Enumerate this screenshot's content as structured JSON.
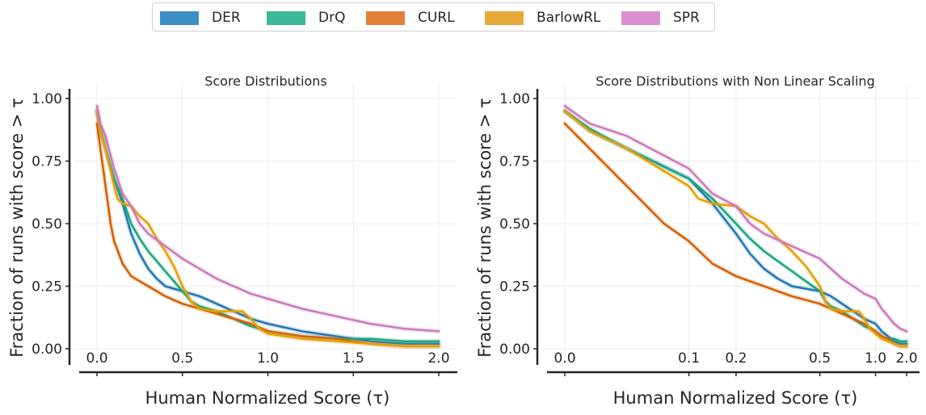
{
  "legend": [
    {
      "name": "DER",
      "color": "#3c8fc4"
    },
    {
      "name": "DrQ",
      "color": "#3bb895"
    },
    {
      "name": "CURL",
      "color": "#e1803a"
    },
    {
      "name": "BarlowRL",
      "color": "#e6a83a"
    },
    {
      "name": "SPR",
      "color": "#d98fd0"
    }
  ],
  "chart_data": [
    {
      "type": "line",
      "title": "Score Distributions",
      "xlabel": "Human Normalized Score (τ)",
      "ylabel": "Fraction of runs with score > τ",
      "xlim": [
        0,
        2.0
      ],
      "ylim": [
        0,
        1.0
      ],
      "xscale": "linear",
      "xticks": [
        0.0,
        0.5,
        1.0,
        1.5,
        2.0
      ],
      "xtick_labels": [
        "0.0",
        "0.5",
        "1.0",
        "1.5",
        "2.0"
      ],
      "yticks": [
        0.0,
        0.25,
        0.5,
        0.75,
        1.0
      ],
      "ytick_labels": [
        "0.00",
        "0.25",
        "0.50",
        "0.75",
        "1.00"
      ],
      "grid": true,
      "series": [
        {
          "name": "DER",
          "color": "#1f77b4",
          "x": [
            0,
            0.02,
            0.05,
            0.1,
            0.15,
            0.2,
            0.25,
            0.3,
            0.35,
            0.4,
            0.5,
            0.6,
            0.7,
            0.8,
            0.9,
            1.0,
            1.2,
            1.4,
            1.6,
            1.8,
            2.0
          ],
          "y": [
            0.95,
            0.87,
            0.8,
            0.68,
            0.58,
            0.46,
            0.38,
            0.32,
            0.28,
            0.25,
            0.23,
            0.21,
            0.18,
            0.15,
            0.12,
            0.1,
            0.07,
            0.05,
            0.03,
            0.02,
            0.02
          ]
        },
        {
          "name": "DrQ",
          "color": "#1aa67f",
          "x": [
            0,
            0.02,
            0.05,
            0.1,
            0.15,
            0.2,
            0.25,
            0.3,
            0.35,
            0.4,
            0.45,
            0.5,
            0.55,
            0.6,
            0.7,
            0.8,
            0.9,
            1.0,
            1.2,
            1.4,
            1.6,
            1.8,
            2.0
          ],
          "y": [
            0.95,
            0.88,
            0.8,
            0.68,
            0.6,
            0.5,
            0.44,
            0.39,
            0.35,
            0.31,
            0.27,
            0.23,
            0.19,
            0.17,
            0.15,
            0.12,
            0.09,
            0.07,
            0.05,
            0.04,
            0.04,
            0.03,
            0.03
          ]
        },
        {
          "name": "CURL",
          "color": "#d55e00",
          "x": [
            0,
            0.02,
            0.04,
            0.06,
            0.08,
            0.1,
            0.15,
            0.2,
            0.25,
            0.3,
            0.4,
            0.5,
            0.6,
            0.7,
            0.8,
            0.9,
            1.0,
            1.2,
            1.4,
            1.6,
            1.8,
            2.0
          ],
          "y": [
            0.9,
            0.8,
            0.7,
            0.6,
            0.5,
            0.43,
            0.34,
            0.29,
            0.27,
            0.25,
            0.21,
            0.18,
            0.16,
            0.14,
            0.12,
            0.1,
            0.07,
            0.05,
            0.04,
            0.02,
            0.01,
            0.01
          ]
        },
        {
          "name": "BarlowRL",
          "color": "#e69f00",
          "x": [
            0,
            0.02,
            0.05,
            0.1,
            0.12,
            0.15,
            0.2,
            0.25,
            0.3,
            0.35,
            0.4,
            0.45,
            0.5,
            0.55,
            0.6,
            0.7,
            0.8,
            0.85,
            0.9,
            0.95,
            1.0,
            1.2,
            1.4,
            1.6,
            1.8,
            2.0
          ],
          "y": [
            0.95,
            0.87,
            0.8,
            0.65,
            0.6,
            0.58,
            0.57,
            0.53,
            0.5,
            0.44,
            0.39,
            0.33,
            0.25,
            0.19,
            0.16,
            0.15,
            0.15,
            0.15,
            0.12,
            0.08,
            0.06,
            0.04,
            0.03,
            0.02,
            0.01,
            0.01
          ]
        },
        {
          "name": "SPR",
          "color": "#cc78bc",
          "x": [
            0,
            0.02,
            0.05,
            0.1,
            0.15,
            0.2,
            0.25,
            0.3,
            0.4,
            0.5,
            0.6,
            0.7,
            0.8,
            0.9,
            1.0,
            1.2,
            1.4,
            1.6,
            1.8,
            2.0
          ],
          "y": [
            0.97,
            0.9,
            0.85,
            0.72,
            0.62,
            0.57,
            0.5,
            0.46,
            0.41,
            0.36,
            0.32,
            0.28,
            0.25,
            0.22,
            0.2,
            0.16,
            0.13,
            0.1,
            0.08,
            0.07
          ]
        }
      ]
    },
    {
      "type": "line",
      "title": "Score Distributions with Non Linear Scaling",
      "xlabel": "Human Normalized Score (τ)",
      "ylabel": "Fraction of runs with score > τ",
      "xlim": [
        0,
        2.0
      ],
      "ylim": [
        0,
        1.0
      ],
      "xscale": "nonlinear",
      "xticks": [
        0.0,
        0.1,
        0.2,
        0.5,
        1.0,
        2.0
      ],
      "xtick_labels": [
        "0.0",
        "0.1",
        "0.2",
        "0.5",
        "1.0",
        "2.0"
      ],
      "yticks": [
        0.0,
        0.25,
        0.5,
        0.75,
        1.0
      ],
      "ytick_labels": [
        "0.00",
        "0.25",
        "0.50",
        "0.75",
        "1.00"
      ],
      "grid": true,
      "series_from": "same as first panel"
    }
  ]
}
